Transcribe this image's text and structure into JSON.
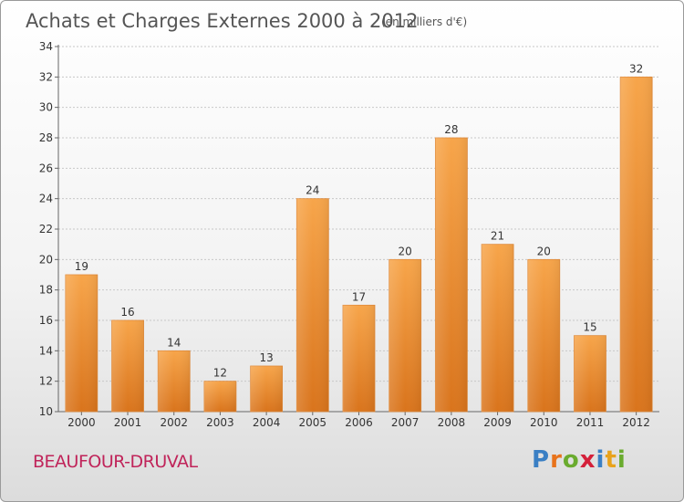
{
  "page": {
    "title": "Achats et Charges Externes 2000 à 2012",
    "subtitle": "(en milliers d'€)",
    "commune": "BEAUFOUR-DRUVAL",
    "logo": {
      "text": "Proxiti",
      "letters": [
        {
          "ch": "P",
          "color": "#3a7fc4"
        },
        {
          "ch": "r",
          "color": "#e8731c"
        },
        {
          "ch": "o",
          "color": "#6aab2e"
        },
        {
          "ch": "x",
          "color": "#d4203a"
        },
        {
          "ch": "i",
          "color": "#3a7fc4"
        },
        {
          "ch": "t",
          "color": "#e8a21c"
        },
        {
          "ch": "i",
          "color": "#6aab2e"
        }
      ]
    }
  },
  "chart_data": {
    "type": "bar",
    "title": "Achats et Charges Externes 2000 à 2012",
    "subtitle": "(en milliers d'€)",
    "categories": [
      "2000",
      "2001",
      "2002",
      "2003",
      "2004",
      "2005",
      "2006",
      "2007",
      "2008",
      "2009",
      "2010",
      "2011",
      "2012"
    ],
    "values": [
      19,
      16,
      14,
      12,
      13,
      24,
      17,
      20,
      28,
      21,
      20,
      15,
      32
    ],
    "ylim": [
      10,
      34
    ],
    "yticks": [
      10,
      12,
      14,
      16,
      18,
      20,
      22,
      24,
      26,
      28,
      30,
      32,
      34
    ],
    "grid": true,
    "bar_color_top": "#f7a54a",
    "bar_color_bottom": "#d9741c"
  }
}
